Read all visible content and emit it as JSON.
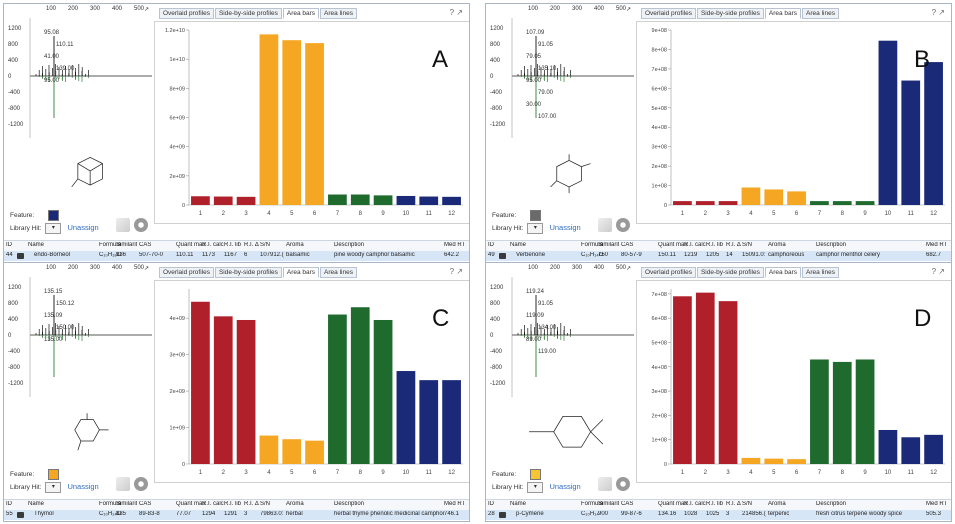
{
  "colors": {
    "red": "#b0202a",
    "orange": "#f5a623",
    "green": "#1f6b2e",
    "blue": "#1a2a78",
    "gray": "#6a6a6a",
    "yellow": "#f7c531",
    "link": "#2d6bc9"
  },
  "tabs": [
    "Overlaid profiles",
    "Side-by-side profiles",
    "Area bars",
    "Area lines"
  ],
  "active_tab": "Area bars",
  "feature_label": "Feature:",
  "library_hit_label": "Library Hit:",
  "unassign_label": "Unassign",
  "spec_x_ticks": [
    "100",
    "200",
    "300",
    "400",
    "500"
  ],
  "spec_y_ticks": [
    "1200",
    "800",
    "400",
    "0",
    "-400",
    "-800",
    "-1200"
  ],
  "x_categories": [
    "1",
    "2",
    "3",
    "4",
    "5",
    "6",
    "7",
    "8",
    "9",
    "10",
    "11",
    "12"
  ],
  "table_columns": [
    "ID",
    "Name",
    "Formula",
    "Similarit",
    "CAS",
    "Quant mas",
    "R.I. calc",
    "R.I. lib",
    "R.I. ∆",
    "S/N",
    "Aroma",
    "Description",
    "Med RT"
  ],
  "panels": [
    {
      "letter": "A",
      "feature_color": "blue",
      "spec_labels": [
        "95.08",
        "110.11",
        "41.00",
        "139.00",
        "95.00"
      ],
      "row": {
        "id": "44",
        "name": "endo-Borneol",
        "formula": "C₁₀H₁₈O",
        "similarity": "936",
        "cas": "507-70-0",
        "quant_mass": "110.11",
        "ri_calc": "1173",
        "ri_lib": "1167",
        "ri_delta": "6",
        "sn": "107912.(",
        "aroma": "balsamic",
        "description": "pine woody camphor balsamic",
        "med_rt": "642.2"
      },
      "chart_data": {
        "type": "bar",
        "categories": [
          "1",
          "2",
          "3",
          "4",
          "5",
          "6",
          "7",
          "8",
          "9",
          "10",
          "11",
          "12"
        ],
        "values": [
          600000000.0,
          580000000.0,
          560000000.0,
          11700000000.0,
          11300000000.0,
          11100000000.0,
          720000000.0,
          720000000.0,
          660000000.0,
          620000000.0,
          580000000.0,
          560000000.0
        ],
        "colors": [
          "red",
          "red",
          "red",
          "orange",
          "orange",
          "orange",
          "green",
          "green",
          "green",
          "blue",
          "blue",
          "blue"
        ],
        "ymax": 12000000000.0,
        "ticks": [
          0,
          2000000000.0,
          4000000000.0,
          6000000000.0,
          8000000000.0,
          10000000000.0,
          12000000000.0
        ],
        "tick_labels": [
          "0",
          "2e+09",
          "4e+09",
          "6e+09",
          "8e+09",
          "1e+10",
          "1.2e+10"
        ]
      }
    },
    {
      "letter": "B",
      "feature_color": "gray",
      "spec_labels": [
        "107.09",
        "91.05",
        "79.05",
        "135.10",
        "95.00",
        "79.00",
        "30.00",
        "107.00"
      ],
      "row": {
        "id": "49",
        "name": "Verbenone",
        "formula": "C₁₀H₁₄O",
        "similarity": "750",
        "cas": "80-57-9",
        "quant_mass": "150.11",
        "ri_calc": "1219",
        "ri_lib": "1205",
        "ri_delta": "14",
        "sn": "15091.0:",
        "aroma": "camphoreous",
        "description": "camphor menthol celery",
        "med_rt": "682.7"
      },
      "chart_data": {
        "type": "bar",
        "categories": [
          "1",
          "2",
          "3",
          "4",
          "5",
          "6",
          "7",
          "8",
          "9",
          "10",
          "11",
          "12"
        ],
        "values": [
          20000000.0,
          20000000.0,
          20000000.0,
          90000000.0,
          80000000.0,
          70000000.0,
          20000000.0,
          20000000.0,
          20000000.0,
          845000000.0,
          640000000.0,
          735000000.0
        ],
        "colors": [
          "red",
          "red",
          "red",
          "orange",
          "orange",
          "orange",
          "green",
          "green",
          "green",
          "blue",
          "blue",
          "blue"
        ],
        "ymax": 900000000.0,
        "ticks": [
          0,
          100000000.0,
          200000000.0,
          300000000.0,
          400000000.0,
          500000000.0,
          600000000.0,
          700000000.0,
          800000000.0,
          900000000.0
        ],
        "tick_labels": [
          "0",
          "1e+08",
          "2e+08",
          "3e+08",
          "4e+08",
          "5e+08",
          "6e+08",
          "7e+08",
          "8e+08",
          "9e+08"
        ]
      }
    },
    {
      "letter": "C",
      "feature_color": "orange",
      "spec_labels": [
        "135.15",
        "150.12",
        "135.09",
        "150.00",
        "135.00"
      ],
      "row": {
        "id": "55",
        "name": "Thymol",
        "formula": "C₁₀H₁₄O",
        "similarity": "835",
        "cas": "89-83-8",
        "quant_mass": "77.07",
        "ri_calc": "1294",
        "ri_lib": "1291",
        "ri_delta": "3",
        "sn": "79863.0:",
        "aroma": "herbal",
        "description": "herbal thyme phenolic medicinal camphor",
        "med_rt": "746.1"
      },
      "chart_data": {
        "type": "bar",
        "categories": [
          "1",
          "2",
          "3",
          "4",
          "5",
          "6",
          "7",
          "8",
          "9",
          "10",
          "11",
          "12"
        ],
        "values": [
          4450000000.0,
          4050000000.0,
          3950000000.0,
          780000000.0,
          680000000.0,
          640000000.0,
          4100000000.0,
          4300000000.0,
          3950000000.0,
          2550000000.0,
          2300000000.0,
          2300000000.0
        ],
        "colors": [
          "red",
          "red",
          "red",
          "orange",
          "orange",
          "orange",
          "green",
          "green",
          "green",
          "blue",
          "blue",
          "blue"
        ],
        "ymax": 4800000000.0,
        "ticks": [
          0,
          1000000000.0,
          2000000000.0,
          3000000000.0,
          4000000000.0
        ],
        "tick_labels": [
          "0",
          "1e+09",
          "2e+09",
          "3e+09",
          "4e+09"
        ]
      }
    },
    {
      "letter": "D",
      "feature_color": "yellow",
      "spec_labels": [
        "119.24",
        "91.05",
        "119.09",
        "134.00",
        "89.00",
        "119.00"
      ],
      "row": {
        "id": "28",
        "name": "p-Cymene",
        "formula": "C₁₀H₁₄",
        "similarity": "900",
        "cas": "99-87-6",
        "quant_mass": "134.16",
        "ri_calc": "1028",
        "ri_lib": "1025",
        "ri_delta": "3",
        "sn": "214856.(",
        "aroma": "terpenic",
        "description": "fresh citrus terpene woody spice",
        "med_rt": "505.3"
      },
      "chart_data": {
        "type": "bar",
        "categories": [
          "1",
          "2",
          "3",
          "4",
          "5",
          "6",
          "7",
          "8",
          "9",
          "10",
          "11",
          "12"
        ],
        "values": [
          690000000.0,
          705000000.0,
          670000000.0,
          25000000.0,
          22000000.0,
          20000000.0,
          430000000.0,
          420000000.0,
          430000000.0,
          140000000.0,
          110000000.0,
          120000000.0
        ],
        "colors": [
          "red",
          "red",
          "red",
          "orange",
          "orange",
          "orange",
          "green",
          "green",
          "green",
          "blue",
          "blue",
          "blue"
        ],
        "ymax": 720000000.0,
        "ticks": [
          0,
          100000000.0,
          200000000.0,
          300000000.0,
          400000000.0,
          500000000.0,
          600000000.0,
          700000000.0
        ],
        "tick_labels": [
          "0",
          "1e+08",
          "2e+08",
          "3e+08",
          "4e+08",
          "5e+08",
          "6e+08",
          "7e+08"
        ]
      }
    }
  ]
}
